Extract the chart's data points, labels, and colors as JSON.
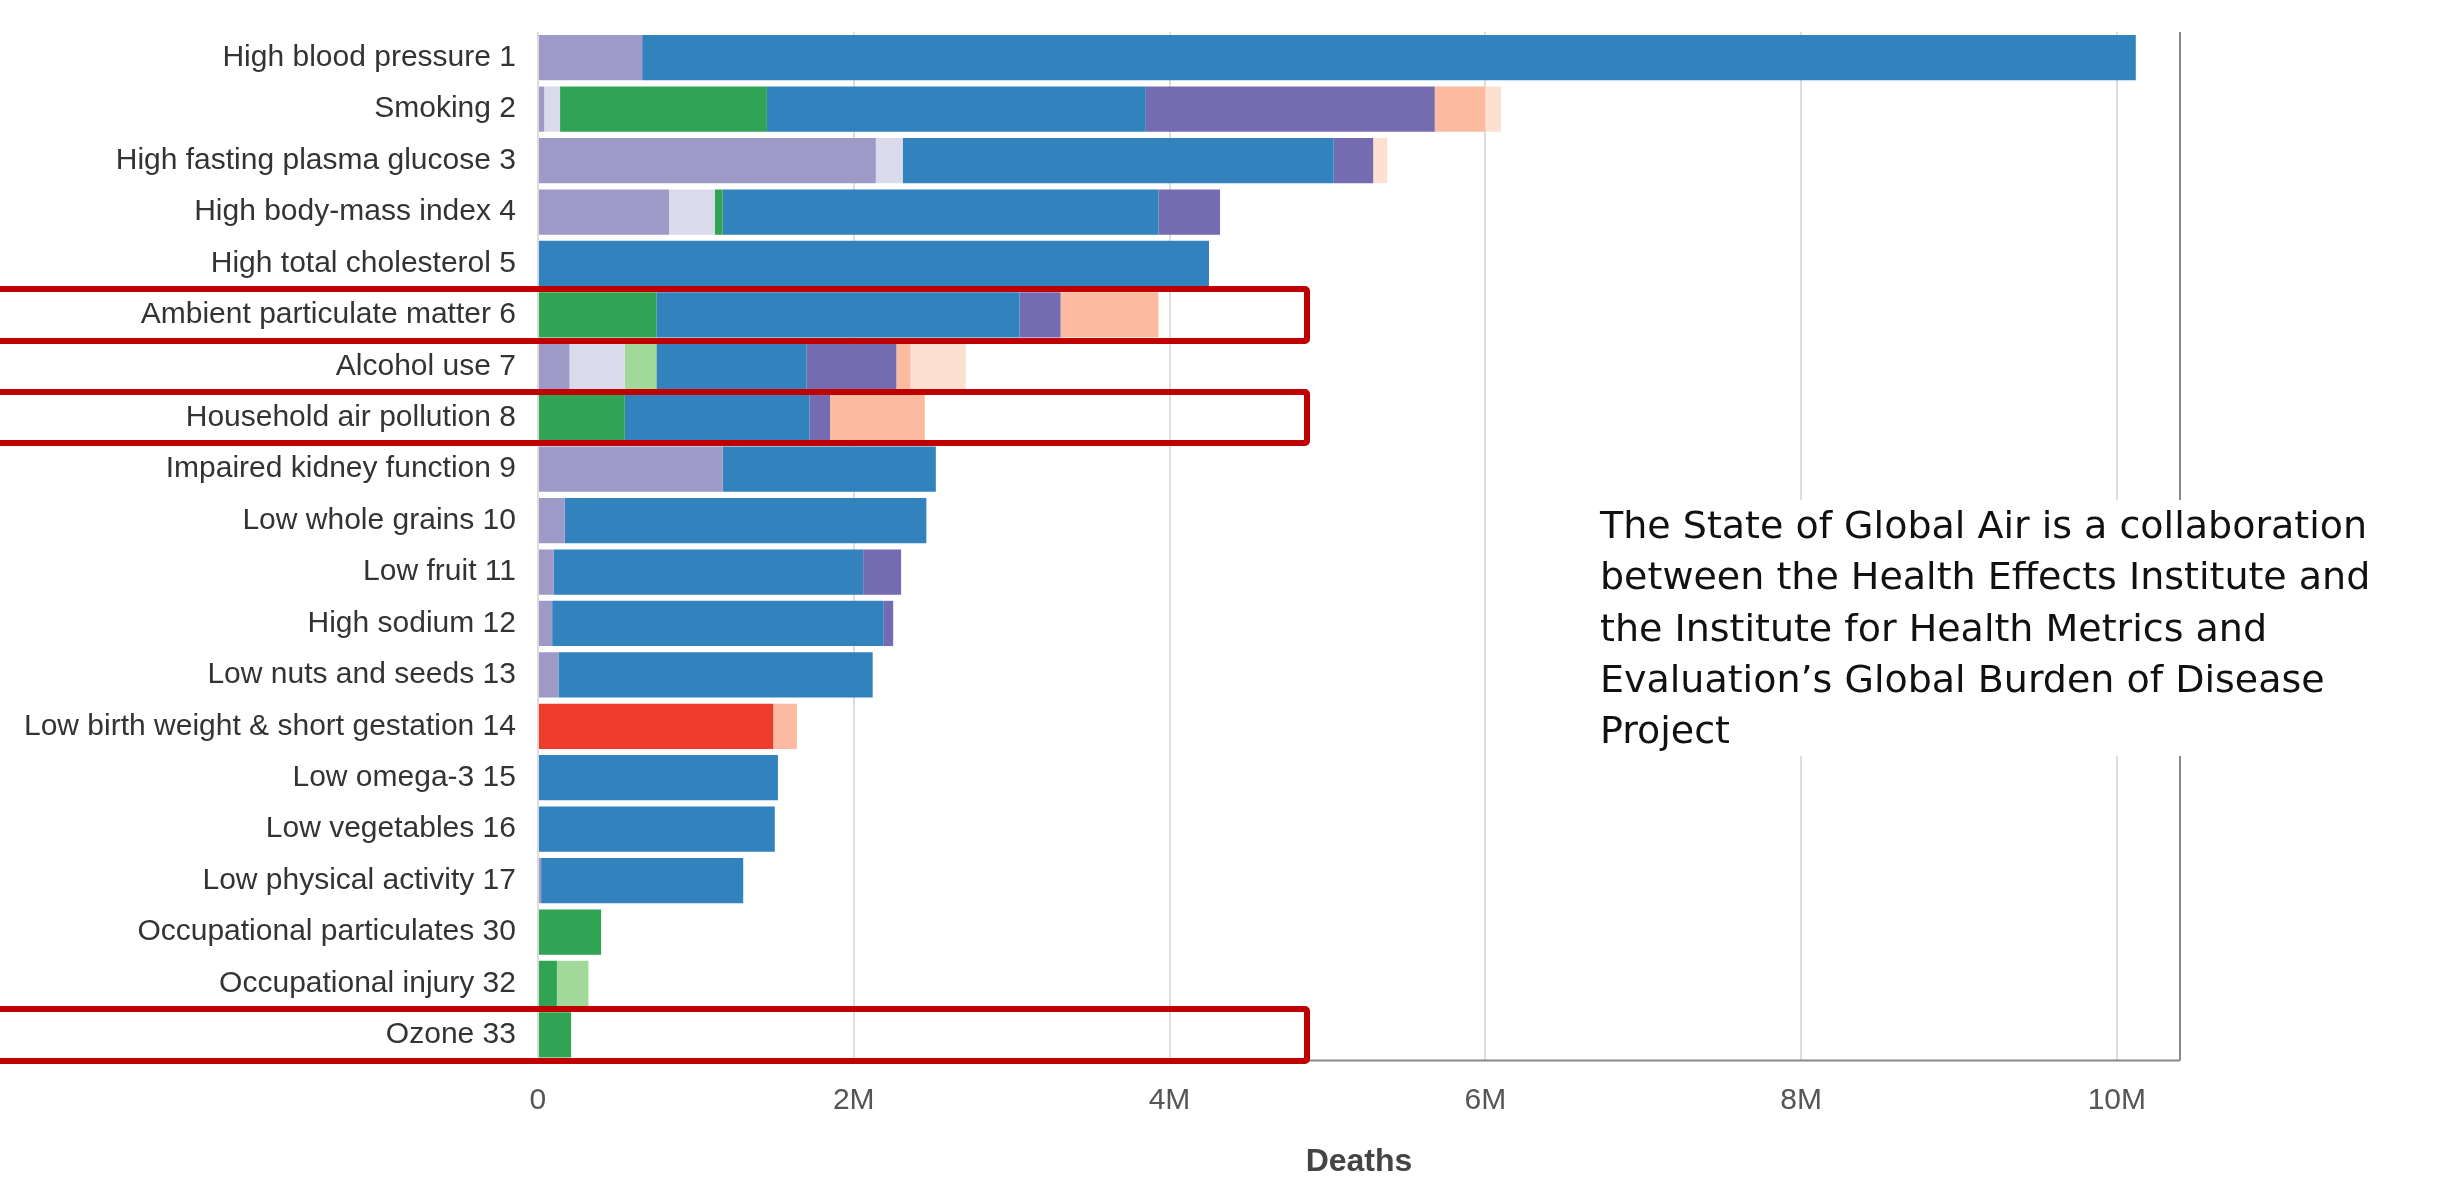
{
  "chart_data": {
    "type": "bar",
    "orientation": "horizontal",
    "stacked": true,
    "xlabel": "Deaths",
    "categories": [
      "High blood pressure 1",
      "Smoking 2",
      "High fasting plasma glucose 3",
      "High body-mass index 4",
      "High total cholesterol 5",
      "Ambient particulate matter 6",
      "Alcohol use 7",
      "Household air pollution 8",
      "Impaired kidney function 9",
      "Low whole grains 10",
      "Low fruit 11",
      "High sodium 12",
      "Low nuts and seeds 13",
      "Low birth weight & short gestation 14",
      "Low omega-3 15",
      "Low vegetables 16",
      "Low physical activity 17",
      "Occupational particulates 30",
      "Occupational injury 32",
      "Ozone 33"
    ],
    "series": [
      {
        "color": "#ef3b2c",
        "values": [
          null,
          null,
          null,
          null,
          null,
          null,
          null,
          null,
          null,
          null,
          null,
          null,
          null,
          1490000,
          null,
          null,
          null,
          null,
          null,
          null
        ]
      },
      {
        "color": "#9e9ac8",
        "values": [
          660000,
          40000,
          2140000,
          830000,
          null,
          null,
          200000,
          null,
          1170000,
          170000,
          100000,
          90000,
          130000,
          null,
          null,
          null,
          20000,
          null,
          null,
          null
        ]
      },
      {
        "color": "#dadaeb",
        "values": [
          null,
          100000,
          170000,
          290000,
          null,
          null,
          350000,
          null,
          null,
          null,
          null,
          null,
          null,
          null,
          null,
          null,
          null,
          null,
          null,
          null
        ]
      },
      {
        "color": "#31a354",
        "values": [
          null,
          1310000,
          null,
          50000,
          null,
          750000,
          null,
          550000,
          null,
          null,
          null,
          null,
          null,
          null,
          null,
          null,
          null,
          400000,
          120000,
          210000
        ]
      },
      {
        "color": "#a1d99b",
        "values": [
          null,
          null,
          null,
          null,
          null,
          null,
          200000,
          null,
          null,
          null,
          null,
          null,
          null,
          null,
          null,
          null,
          null,
          null,
          200000,
          null
        ]
      },
      {
        "color": "#3182bd",
        "values": [
          9460000,
          2400000,
          2730000,
          2760000,
          4250000,
          2300000,
          950000,
          1170000,
          1350000,
          2290000,
          1960000,
          2100000,
          1990000,
          null,
          1520000,
          1500000,
          1280000,
          null,
          null,
          null
        ]
      },
      {
        "color": "#756bb1",
        "values": [
          null,
          1830000,
          250000,
          390000,
          null,
          260000,
          570000,
          130000,
          null,
          null,
          240000,
          60000,
          null,
          null,
          null,
          null,
          null,
          null,
          null,
          null
        ]
      },
      {
        "color": "#fcbba1",
        "values": [
          null,
          320000,
          null,
          null,
          null,
          620000,
          90000,
          600000,
          null,
          null,
          null,
          null,
          null,
          150000,
          null,
          null,
          null,
          null,
          null,
          null
        ]
      },
      {
        "color": "#fee0d2",
        "values": [
          null,
          100000,
          90000,
          null,
          null,
          null,
          350000,
          null,
          null,
          null,
          null,
          null,
          null,
          null,
          null,
          null,
          null,
          null,
          null,
          null
        ]
      }
    ],
    "xlim": [
      0,
      10400000
    ],
    "xticks": [
      0,
      {
        "value": 2000000,
        "label": "2M"
      },
      {
        "value": 4000000,
        "label": "4M"
      },
      {
        "value": 6000000,
        "label": "6M"
      },
      {
        "value": 8000000,
        "label": "8M"
      },
      {
        "value": 10000000,
        "label": "10M"
      }
    ],
    "grid": "x",
    "legend": false,
    "annotations": [
      "The State of Global Air is a collaboration between the Health Effects Institute and the Institute for Health Metrics and Evaluation’s Global Burden of Disease Project"
    ]
  }
}
